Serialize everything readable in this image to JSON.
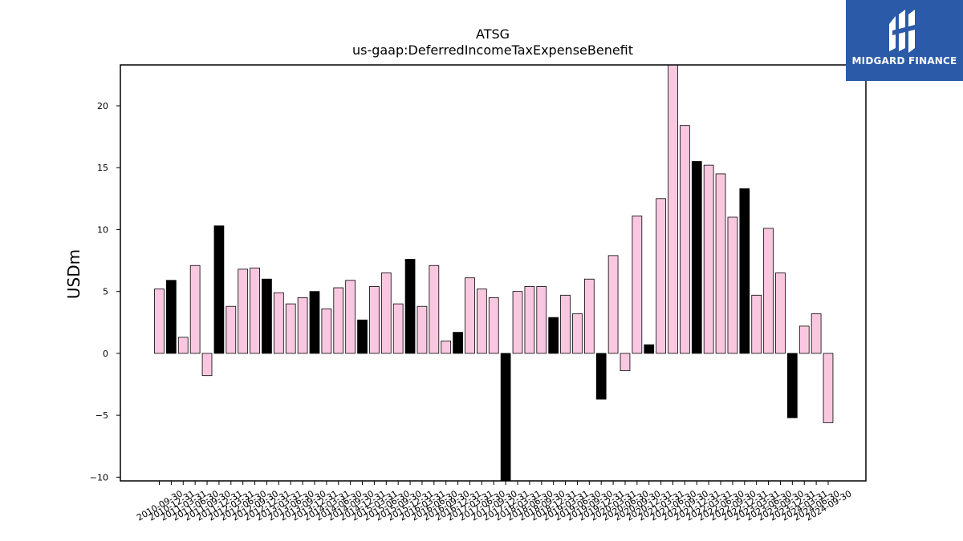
{
  "chart_data": {
    "type": "bar",
    "title": "ATSG",
    "subtitle": "us-gaap:DeferredIncomeTaxExpenseBenefit",
    "ylabel": "USDm",
    "xlabel": "",
    "ylim": [
      -10.3,
      23.3
    ],
    "yticks": [
      -10,
      -5,
      0,
      5,
      10,
      15,
      20
    ],
    "ytick_labels": [
      "−10",
      "−5",
      "0",
      "5",
      "10",
      "15",
      "20"
    ],
    "colors": {
      "q4": "#000000",
      "other": "#f9c8e0",
      "edge": "#000000"
    },
    "categories": [
      "2010-09-30",
      "2010-12-31",
      "2011-03-31",
      "2011-06-30",
      "2011-09-30",
      "2011-12-31",
      "2012-03-31",
      "2012-06-30",
      "2012-09-30",
      "2012-12-31",
      "2013-03-31",
      "2013-06-30",
      "2013-09-30",
      "2013-12-31",
      "2014-03-31",
      "2014-06-30",
      "2014-09-30",
      "2014-12-31",
      "2015-03-31",
      "2015-06-30",
      "2015-09-30",
      "2015-12-31",
      "2016-03-31",
      "2016-06-30",
      "2016-09-30",
      "2016-12-31",
      "2017-03-31",
      "2017-06-30",
      "2017-09-30",
      "2017-12-31",
      "2018-03-31",
      "2018-06-30",
      "2018-09-30",
      "2018-12-31",
      "2019-03-31",
      "2019-06-30",
      "2019-09-30",
      "2019-12-31",
      "2020-03-31",
      "2020-06-30",
      "2020-09-30",
      "2020-12-31",
      "2021-03-31",
      "2021-06-30",
      "2021-09-30",
      "2021-12-31",
      "2022-03-31",
      "2022-06-30",
      "2022-09-30",
      "2022-12-31",
      "2023-03-31",
      "2023-06-30",
      "2023-09-30",
      "2023-12-31",
      "2024-03-31",
      "2024-06-30",
      "2024-09-30"
    ],
    "values": [
      5.2,
      5.9,
      1.3,
      7.1,
      -1.8,
      10.3,
      3.8,
      6.8,
      6.9,
      6.0,
      4.9,
      4.0,
      4.5,
      5.0,
      3.6,
      5.3,
      5.9,
      2.7,
      5.4,
      6.5,
      4.0,
      7.6,
      3.8,
      7.1,
      1.0,
      1.7,
      6.1,
      5.2,
      4.5,
      -10.3,
      5.0,
      5.4,
      5.4,
      2.9,
      4.7,
      3.2,
      6.0,
      -3.7,
      7.9,
      -1.4,
      11.1,
      0.7,
      12.5,
      23.3,
      18.4,
      15.5,
      15.2,
      14.5,
      11.0,
      13.3,
      4.7,
      10.1,
      6.5,
      -5.2,
      2.2,
      3.2,
      -5.6
    ],
    "highlight": [
      false,
      true,
      false,
      false,
      false,
      true,
      false,
      false,
      false,
      true,
      false,
      false,
      false,
      true,
      false,
      false,
      false,
      true,
      false,
      false,
      false,
      true,
      false,
      false,
      false,
      true,
      false,
      false,
      false,
      true,
      false,
      false,
      false,
      true,
      false,
      false,
      false,
      true,
      false,
      false,
      false,
      true,
      false,
      false,
      false,
      true,
      false,
      false,
      false,
      true,
      false,
      false,
      false,
      true,
      false,
      false,
      false
    ]
  },
  "logo": {
    "text": "MIDGARD FINANCE",
    "icon": "midgard-logo-icon"
  }
}
